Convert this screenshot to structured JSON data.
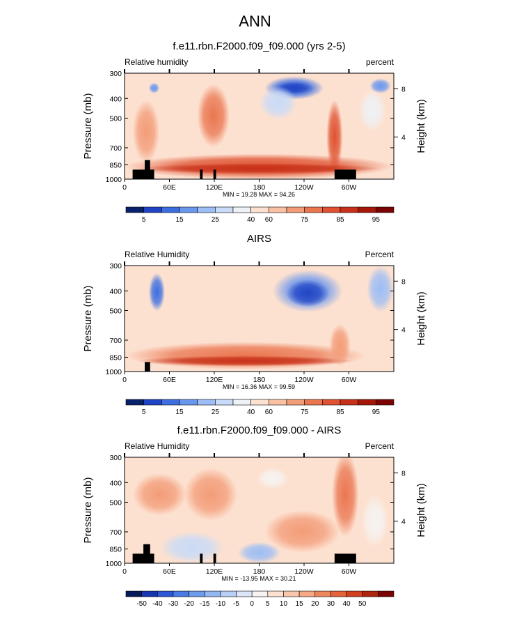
{
  "page": {
    "title": "ANN"
  },
  "colors": {
    "abs_scale": [
      "#08216b",
      "#2144c4",
      "#3c6ee0",
      "#6a97ee",
      "#9cbdf5",
      "#c9dbf8",
      "#eef1f6",
      "#fde1d0",
      "#f9c1a3",
      "#f39c78",
      "#ea7650",
      "#df5130",
      "#c73119",
      "#a41709",
      "#7a0403"
    ],
    "diff_scale": [
      "#061a5c",
      "#1637b0",
      "#2c57d6",
      "#4a7ae3",
      "#6e9bec",
      "#93b7f2",
      "#b9d0f6",
      "#dce6f8",
      "#f6f3f1",
      "#fde1d0",
      "#f9c7ab",
      "#f5a883",
      "#ef875e",
      "#e5623b",
      "#d2401f",
      "#b0230f",
      "#7a0403"
    ]
  },
  "chart_data": [
    {
      "type": "heatmap",
      "title": "f.e11.rbn.F2000.f09_f09.000 (yrs 2-5)",
      "left_label": "Relative humidity",
      "right_label": "percent",
      "ylabel": "Pressure (mb)",
      "y2label": "Height (km)",
      "y_ticks": [
        "300",
        "400",
        "500",
        "700",
        "850",
        "1000"
      ],
      "y2_ticks": [
        "8",
        "4"
      ],
      "x_ticks": [
        "0",
        "60E",
        "120E",
        "180",
        "120W",
        "60W"
      ],
      "stats": "MIN =  19.28   MAX =  94.26",
      "colorbar_labels": [
        "5",
        "15",
        "25",
        "40",
        "60",
        "75",
        "85",
        "95"
      ],
      "ylim": [
        1000,
        300
      ],
      "xlim": [
        0,
        360
      ]
    },
    {
      "type": "heatmap",
      "title": "AIRS",
      "left_label": "Relative Humidity",
      "right_label": "Percent",
      "ylabel": "Pressure (mb)",
      "y2label": "Height (km)",
      "y_ticks": [
        "300",
        "400",
        "500",
        "700",
        "850",
        "1000"
      ],
      "y2_ticks": [
        "8",
        "4"
      ],
      "x_ticks": [
        "0",
        "60E",
        "120E",
        "180",
        "120W",
        "60W"
      ],
      "stats": "MIN =  16.36   MAX =  99.59",
      "colorbar_labels": [
        "5",
        "15",
        "25",
        "40",
        "60",
        "75",
        "85",
        "95"
      ],
      "ylim": [
        1000,
        300
      ],
      "xlim": [
        0,
        360
      ]
    },
    {
      "type": "heatmap",
      "title": "f.e11.rbn.F2000.f09_f09.000 - AIRS",
      "left_label": "Relative Humidity",
      "right_label": "Percent",
      "ylabel": "Pressure (mb)",
      "y2label": "Height (km)",
      "y_ticks": [
        "300",
        "400",
        "500",
        "700",
        "850",
        "1000"
      ],
      "y2_ticks": [
        "8",
        "4"
      ],
      "x_ticks": [
        "0",
        "60E",
        "120E",
        "180",
        "120W",
        "60W"
      ],
      "stats": "MIN = -13.95   MAX =  30.21",
      "colorbar_labels": [
        "-50",
        "-40",
        "-30",
        "-20",
        "-15",
        "-10",
        "-5",
        "0",
        "5",
        "10",
        "15",
        "20",
        "30",
        "40",
        "50"
      ],
      "ylim": [
        1000,
        300
      ],
      "xlim": [
        0,
        360
      ]
    }
  ]
}
